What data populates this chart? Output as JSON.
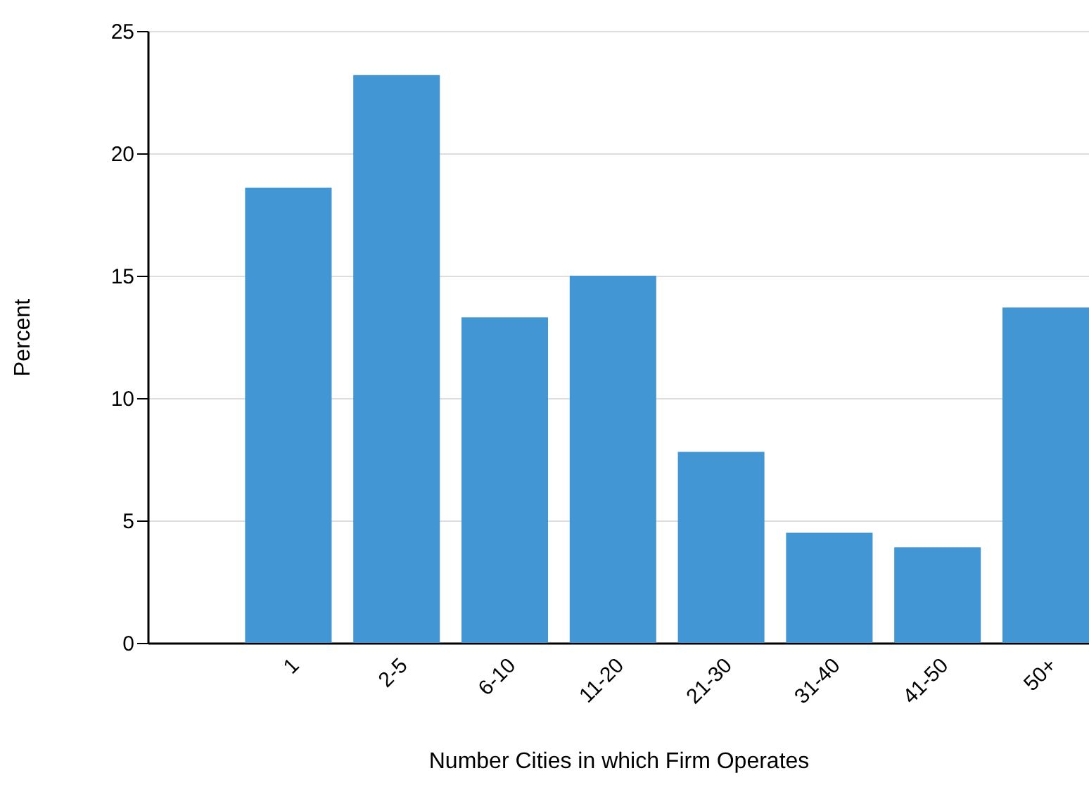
{
  "chart_data": {
    "type": "bar",
    "xlabel": "Number Cities in which Firm Operates",
    "ylabel": "Percent",
    "categories": [
      "1",
      "2-5",
      "6-10",
      "11-20",
      "21-30",
      "31-40",
      "41-50",
      "50+"
    ],
    "values": [
      18.6,
      23.2,
      13.3,
      15.0,
      7.8,
      4.5,
      3.9,
      13.7
    ],
    "color": "#4196d3",
    "ylim": [
      0,
      25
    ],
    "yticks": [
      0,
      5,
      10,
      15,
      20,
      25
    ],
    "grid": "y"
  }
}
